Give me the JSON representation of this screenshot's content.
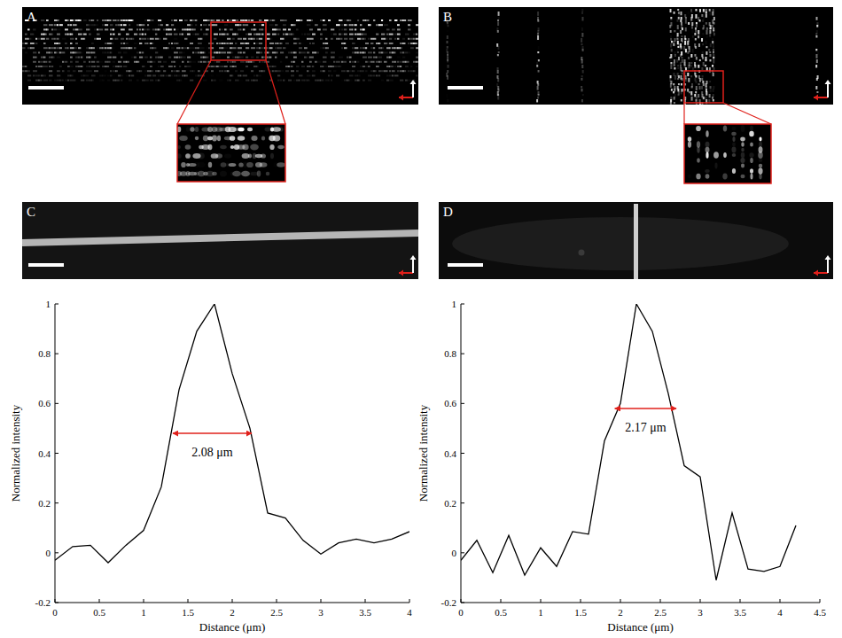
{
  "panels": [
    "A",
    "B",
    "C",
    "D"
  ],
  "chart_data": [
    {
      "type": "line",
      "color": "#000000",
      "xlabel": "Distance (μm)",
      "ylabel": "Normalized intensity",
      "x": [
        0,
        0.2,
        0.4,
        0.6,
        0.8,
        1.0,
        1.2,
        1.4,
        1.6,
        1.8,
        2.0,
        2.2,
        2.4,
        2.6,
        2.8,
        3.0,
        3.2,
        3.4,
        3.6,
        3.8,
        4.0
      ],
      "values": [
        -0.03,
        0.025,
        0.03,
        -0.04,
        0.03,
        0.09,
        0.265,
        0.655,
        0.89,
        1.0,
        0.72,
        0.5,
        0.16,
        0.14,
        0.05,
        -0.005,
        0.04,
        0.055,
        0.04,
        0.055,
        0.085
      ],
      "xlim": [
        0,
        4
      ],
      "xticks": [
        0,
        0.5,
        1,
        1.5,
        2,
        2.5,
        3,
        3.5,
        4
      ],
      "ylim": [
        -0.2,
        1
      ],
      "yticks": [
        -0.2,
        0,
        0.2,
        0.4,
        0.6,
        0.8,
        1
      ],
      "annotations": [
        {
          "text": "2.08 μm",
          "x1": 1.33,
          "x2": 2.22,
          "y": 0.48,
          "color": "#e0201b"
        }
      ]
    },
    {
      "type": "line",
      "color": "#000000",
      "xlabel": "Distance (μm)",
      "ylabel": "Normalized intensity",
      "x": [
        0,
        0.2,
        0.4,
        0.6,
        0.8,
        1.0,
        1.2,
        1.4,
        1.6,
        1.8,
        2.0,
        2.2,
        2.4,
        2.6,
        2.8,
        3.0,
        3.2,
        3.4,
        3.6,
        3.8,
        4.0,
        4.2
      ],
      "values": [
        -0.03,
        0.05,
        -0.08,
        0.07,
        -0.09,
        0.02,
        -0.055,
        0.085,
        0.075,
        0.45,
        0.6,
        1.0,
        0.89,
        0.64,
        0.35,
        0.305,
        -0.11,
        0.16,
        -0.065,
        -0.075,
        -0.055,
        0.11
      ],
      "xlim": [
        0,
        4.5
      ],
      "xticks": [
        0,
        0.5,
        1,
        1.5,
        2,
        2.5,
        3,
        3.5,
        4,
        4.5
      ],
      "ylim": [
        -0.2,
        1
      ],
      "yticks": [
        -0.2,
        0,
        0.2,
        0.4,
        0.6,
        0.8,
        1
      ],
      "annotations": [
        {
          "text": "2.17 μm",
          "x1": 1.93,
          "x2": 2.7,
          "y": 0.58,
          "color": "#e0201b"
        }
      ]
    }
  ]
}
